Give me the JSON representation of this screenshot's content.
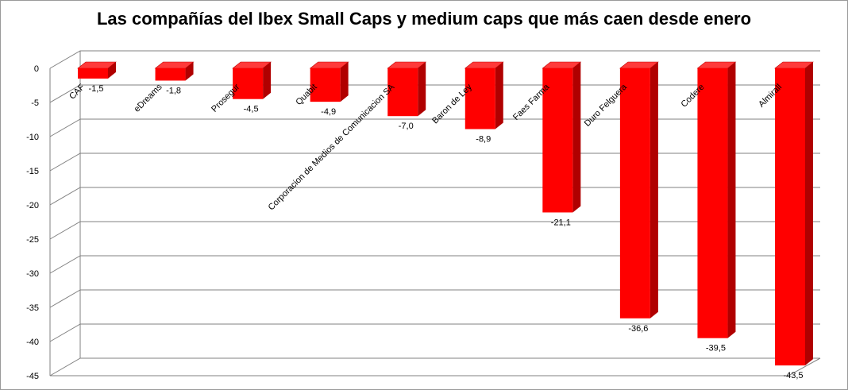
{
  "chart_data": {
    "type": "bar",
    "title": "Las compañías del Ibex Small Caps y medium caps que más caen desde enero",
    "xlabel": "",
    "ylabel": "",
    "ylim": [
      -45,
      0
    ],
    "yticks": [
      0,
      -5,
      -10,
      -15,
      -20,
      -25,
      -30,
      -35,
      -40,
      -45
    ],
    "ytick_labels": [
      "0",
      "-5",
      "-10",
      "-15",
      "-20",
      "-25",
      "-30",
      "-35",
      "-40",
      "-45"
    ],
    "grid": true,
    "legend": "none",
    "style": "3d-column",
    "categories": [
      "CAF",
      "eDreams",
      "Prosegur",
      "Quabit",
      "Corporacion de Medios de Comunicacion SA",
      "Baron de Ley",
      "Faes Farma",
      "Duro Felguera",
      "Codere",
      "Almirall"
    ],
    "values": [
      -1.5,
      -1.8,
      -4.5,
      -4.9,
      -7.0,
      -8.9,
      -21.1,
      -36.6,
      -39.5,
      -43.5
    ],
    "value_labels": [
      "-1,5",
      "-1,8",
      "-4,5",
      "-4,9",
      "-7,0",
      "-8,9",
      "-21,1",
      "-36,6",
      "-39,5",
      "-43,5"
    ],
    "colors": {
      "bar_front": "#ff0000",
      "bar_side": "#b00000",
      "bar_top": "#ff3a3a",
      "grid": "#808080"
    }
  }
}
